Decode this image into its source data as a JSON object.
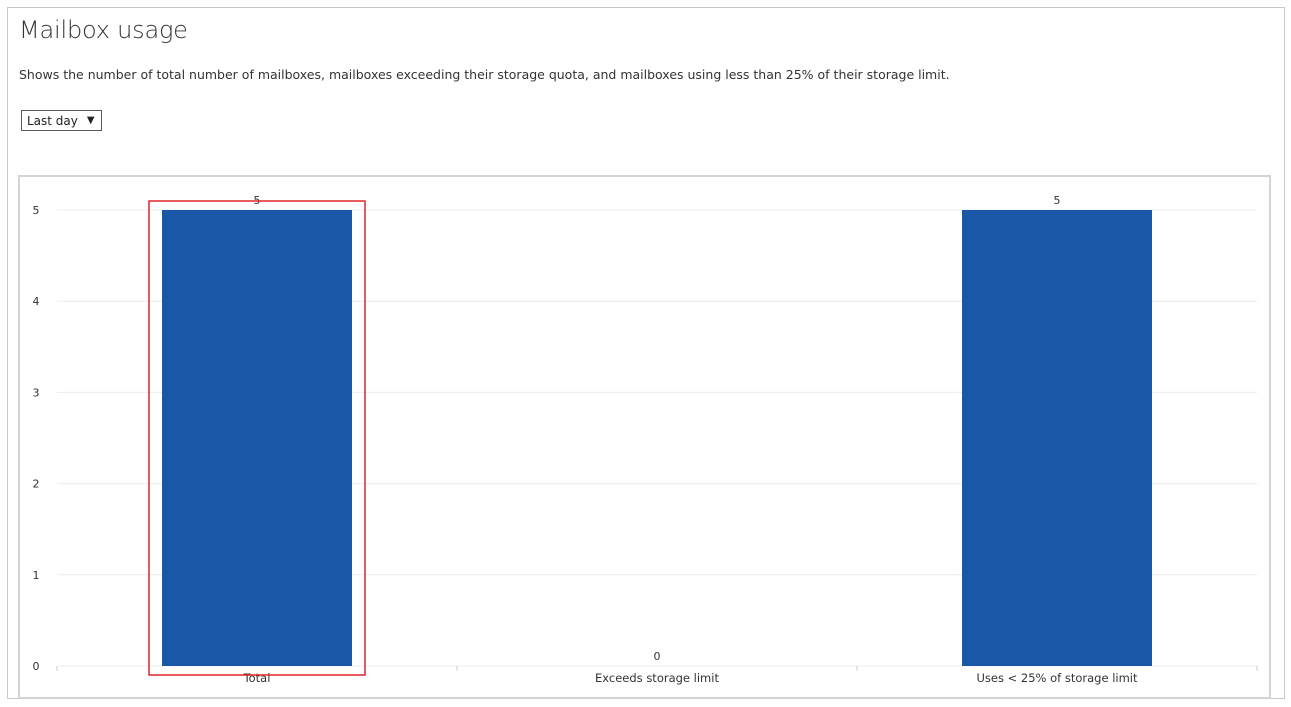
{
  "page": {
    "title": "Mailbox usage",
    "description": "Shows the number of total number of mailboxes, mailboxes exceeding their storage quota, and mailboxes using less than 25% of their storage limit."
  },
  "filter": {
    "selected": "Last day",
    "arrow_icon": "dropdown-triangle-icon"
  },
  "colors": {
    "bar": "#1a57a6",
    "highlight": "#e0262b",
    "grid": "#ececec",
    "text": "#333333"
  },
  "chart_data": {
    "type": "bar",
    "title": "",
    "xlabel": "",
    "ylabel": "",
    "categories": [
      "Total",
      "Exceeds storage limit",
      "Uses < 25% of storage limit"
    ],
    "values": [
      5,
      0,
      5
    ],
    "data_labels": [
      "5",
      "0",
      "5"
    ],
    "yticks": [
      0,
      1,
      2,
      3,
      4,
      5
    ],
    "ylim": [
      0,
      5
    ],
    "grid": true,
    "legend": "none",
    "highlighted_category": "Total"
  }
}
